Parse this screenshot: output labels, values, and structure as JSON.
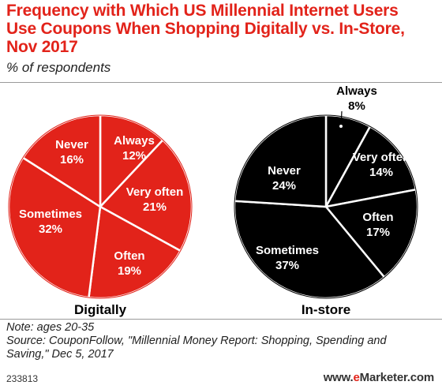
{
  "header": {
    "title_lines": [
      "Frequency with Which US Millennial Internet Users",
      "Use Coupons When Shopping Digitally vs. In-Store,",
      "Nov 2017"
    ],
    "subtitle": "% of respondents"
  },
  "chart_data": [
    {
      "type": "pie",
      "name": "Digitally",
      "color": "#e2231a",
      "label_color": "#ffffff",
      "slices": [
        {
          "label": "Always",
          "value": 12,
          "value_text": "12%"
        },
        {
          "label": "Very often",
          "value": 21,
          "value_text": "21%"
        },
        {
          "label": "Often",
          "value": 19,
          "value_text": "19%"
        },
        {
          "label": "Sometimes",
          "value": 32,
          "value_text": "32%"
        },
        {
          "label": "Never",
          "value": 16,
          "value_text": "16%"
        }
      ]
    },
    {
      "type": "pie",
      "name": "In-store",
      "color": "#000000",
      "label_color": "#ffffff",
      "slices": [
        {
          "label": "Always",
          "value": 8,
          "value_text": "8%"
        },
        {
          "label": "Very often",
          "value": 14,
          "value_text": "14%"
        },
        {
          "label": "Often",
          "value": 17,
          "value_text": "17%"
        },
        {
          "label": "Sometimes",
          "value": 37,
          "value_text": "37%"
        },
        {
          "label": "Never",
          "value": 24,
          "value_text": "24%"
        }
      ]
    }
  ],
  "footer": {
    "note": "Note: ages 20-35",
    "source_line1": "Source: CouponFollow, \"Millennial Money Report: Shopping, Spending and",
    "source_line2": "Saving,\" Dec 5, 2017",
    "chart_id": "233813",
    "brand_prefix": "www.",
    "brand_e": "e",
    "brand_suffix": "Marketer.com"
  }
}
